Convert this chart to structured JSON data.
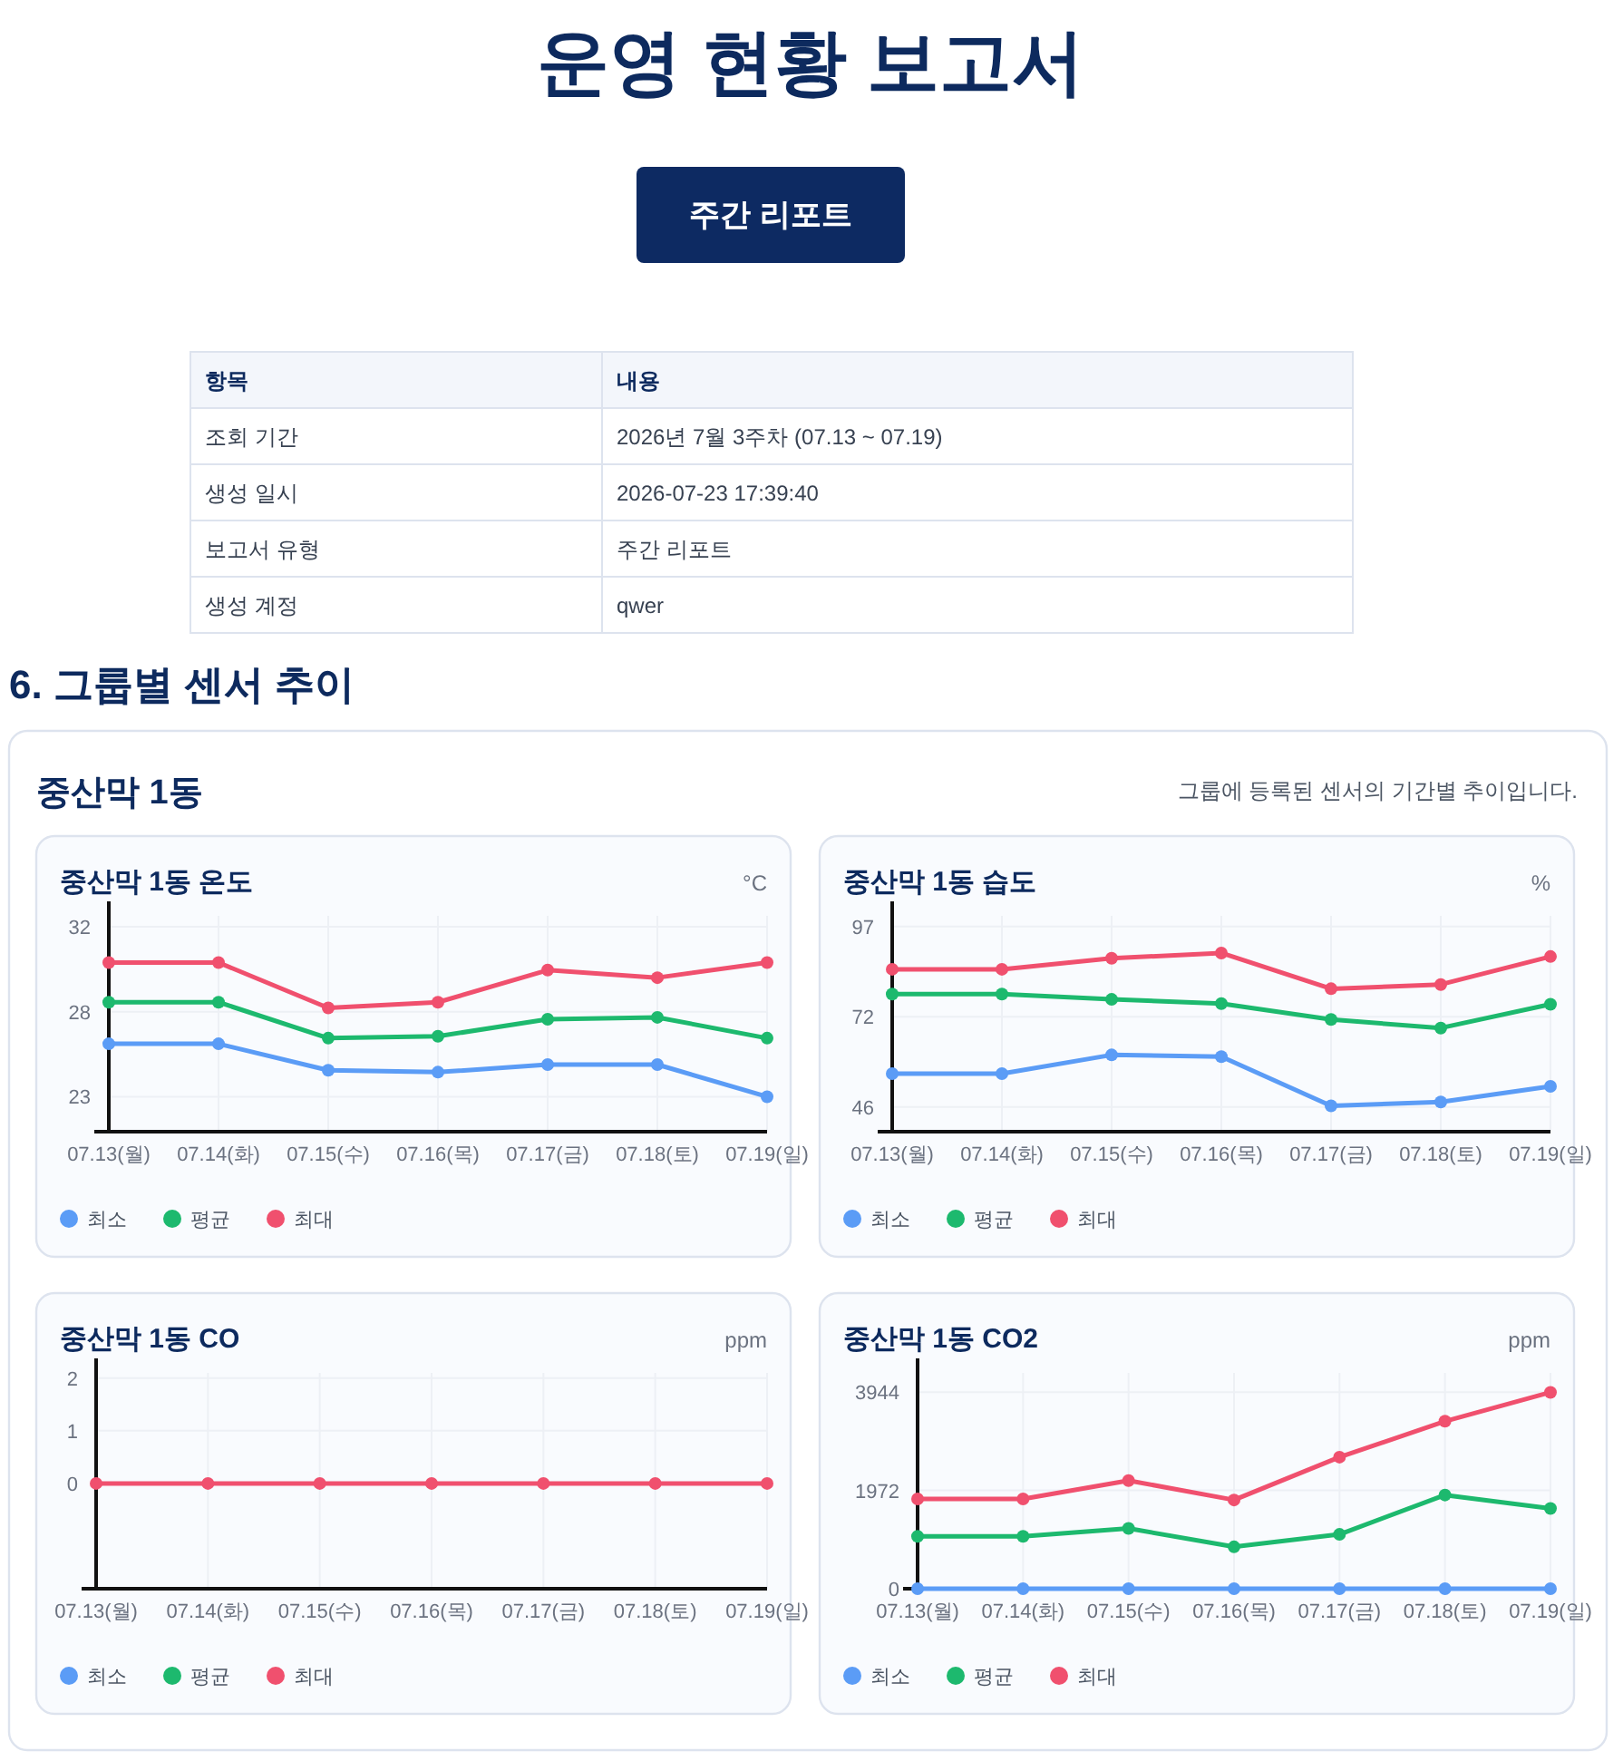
{
  "chart_data": [
    {
      "type": "other",
      "title": "운영 현황 보고서",
      "subtitle": "주간 리포트",
      "annotations": [
        "항목",
        "내용",
        "조회 기간",
        "2026년 7월 3주차 (07.13 ~ 07.19)",
        "생성 일시",
        "2026-07-23 17:39:40",
        "보고서 유형",
        "주간 리포트",
        "생성 계정",
        "qwer",
        "6. 그룹별 센서 추이",
        "중산막 1동",
        "그룹에 등록된 센서의 기간별 추이입니다."
      ]
    },
    {
      "type": "line",
      "title": "중산막 1동 온도",
      "ylabel": "°C",
      "categories": [
        "07.13(월)",
        "07.14(화)",
        "07.15(수)",
        "07.16(목)",
        "07.17(금)",
        "07.18(토)",
        "07.19(일)"
      ],
      "ylim": [
        21.15,
        32.57
      ],
      "yticks": [
        23,
        {
          "value": 27.5,
          "label": "28"
        },
        32
      ],
      "grid": true,
      "legend": "bottom",
      "marker": "circle",
      "line_style": "solid",
      "series": [
        {
          "name": "최소",
          "color": "#5b9cf6",
          "values": [
            25.8,
            25.8,
            24.4,
            24.3,
            24.7,
            24.7,
            23.0
          ]
        },
        {
          "name": "평균",
          "color": "#1db96e",
          "values": [
            28.0,
            28.0,
            26.1,
            26.2,
            27.1,
            27.2,
            26.1
          ]
        },
        {
          "name": "최대",
          "color": "#f0506e",
          "values": [
            30.1,
            30.1,
            27.7,
            28.0,
            29.7,
            29.3,
            30.1
          ]
        }
      ]
    },
    {
      "type": "line",
      "title": "중산막 1동 습도",
      "ylabel": "%",
      "categories": [
        "07.13(월)",
        "07.14(화)",
        "07.15(수)",
        "07.16(목)",
        "07.17(금)",
        "07.18(토)",
        "07.19(일)"
      ],
      "ylim": [
        39,
        100
      ],
      "yticks": [
        46,
        {
          "value": 71.5,
          "label": "72"
        },
        97
      ],
      "grid": true,
      "legend": "bottom",
      "marker": "circle",
      "line_style": "solid",
      "series": [
        {
          "name": "최소",
          "color": "#5b9cf6",
          "values": [
            55.4,
            55.4,
            60.7,
            60.2,
            46.3,
            47.4,
            51.8
          ]
        },
        {
          "name": "평균",
          "color": "#1db96e",
          "values": [
            77.9,
            77.9,
            76.4,
            75.2,
            70.7,
            68.3,
            75.0
          ]
        },
        {
          "name": "최대",
          "color": "#f0506e",
          "values": [
            84.9,
            84.9,
            88.0,
            89.5,
            79.4,
            80.6,
            88.5
          ]
        }
      ]
    },
    {
      "type": "line",
      "title": "중산막 1동 CO",
      "ylabel": "ppm",
      "categories": [
        "07.13(월)",
        "07.14(화)",
        "07.15(수)",
        "07.16(목)",
        "07.17(금)",
        "07.18(토)",
        "07.19(일)"
      ],
      "ylim": [
        -2,
        2.1
      ],
      "yticks": [
        0,
        1,
        2
      ],
      "grid": true,
      "legend": "bottom",
      "marker": "circle",
      "line_style": "solid",
      "series": [
        {
          "name": "최소",
          "color": "#5b9cf6",
          "values": [
            null,
            null,
            null,
            null,
            null,
            null,
            null
          ]
        },
        {
          "name": "평균",
          "color": "#1db96e",
          "values": [
            null,
            null,
            null,
            null,
            null,
            null,
            null
          ]
        },
        {
          "name": "최대",
          "color": "#f0506e",
          "values": [
            0,
            0,
            0,
            0,
            0,
            0,
            0
          ]
        }
      ]
    },
    {
      "type": "line",
      "title": "중산막 1동 CO2",
      "ylabel": "ppm",
      "categories": [
        "07.13(월)",
        "07.14(화)",
        "07.15(수)",
        "07.16(목)",
        "07.17(금)",
        "07.18(토)",
        "07.19(일)"
      ],
      "ylim": [
        0,
        4330
      ],
      "yticks": [
        0,
        1972,
        3944
      ],
      "grid": true,
      "legend": "bottom",
      "marker": "circle",
      "line_style": "solid",
      "series": [
        {
          "name": "최소",
          "color": "#5b9cf6",
          "values": [
            0,
            0,
            0,
            0,
            0,
            0,
            0
          ]
        },
        {
          "name": "평균",
          "color": "#1db96e",
          "values": [
            1050,
            1050,
            1210,
            840,
            1090,
            1880,
            1610
          ]
        },
        {
          "name": "최대",
          "color": "#f0506e",
          "values": [
            1800,
            1800,
            2170,
            1780,
            2640,
            3360,
            3940
          ]
        }
      ]
    }
  ]
}
